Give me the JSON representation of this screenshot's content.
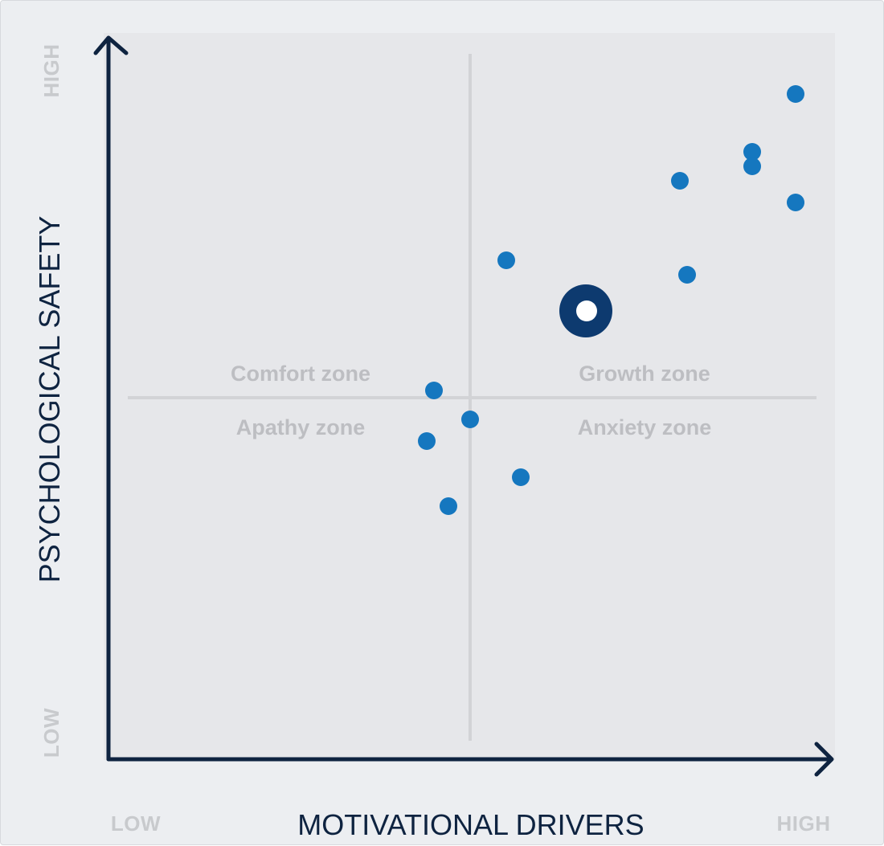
{
  "chart_data": {
    "type": "scatter",
    "xlabel": "MOTIVATIONAL DRIVERS",
    "ylabel": "PSYCHOLOGICAL SAFETY",
    "x_low_label": "LOW",
    "x_high_label": "HIGH",
    "y_low_label": "LOW",
    "y_high_label": "HIGH",
    "xlim": [
      0,
      100
    ],
    "ylim": [
      0,
      100
    ],
    "grid": false,
    "quadrant_divider": {
      "x": 50,
      "y": 50
    },
    "zones": {
      "top_left": "Comfort zone",
      "top_right": "Growth zone",
      "bottom_left": "Apathy zone",
      "bottom_right": "Anxiety zone"
    },
    "series": [
      {
        "points": [
          {
            "x": 95,
            "y": 92
          },
          {
            "x": 89,
            "y": 84
          },
          {
            "x": 89,
            "y": 82
          },
          {
            "x": 79,
            "y": 80
          },
          {
            "x": 95,
            "y": 77
          },
          {
            "x": 80,
            "y": 67
          },
          {
            "x": 55,
            "y": 69
          },
          {
            "x": 45,
            "y": 51
          },
          {
            "x": 50,
            "y": 47
          },
          {
            "x": 44,
            "y": 44
          },
          {
            "x": 57,
            "y": 39
          },
          {
            "x": 47,
            "y": 35
          }
        ],
        "color": "#1577bf"
      },
      {
        "points": [
          {
            "x": 66,
            "y": 62
          }
        ],
        "marker": "ring",
        "color": "#0d3a6f"
      }
    ]
  }
}
